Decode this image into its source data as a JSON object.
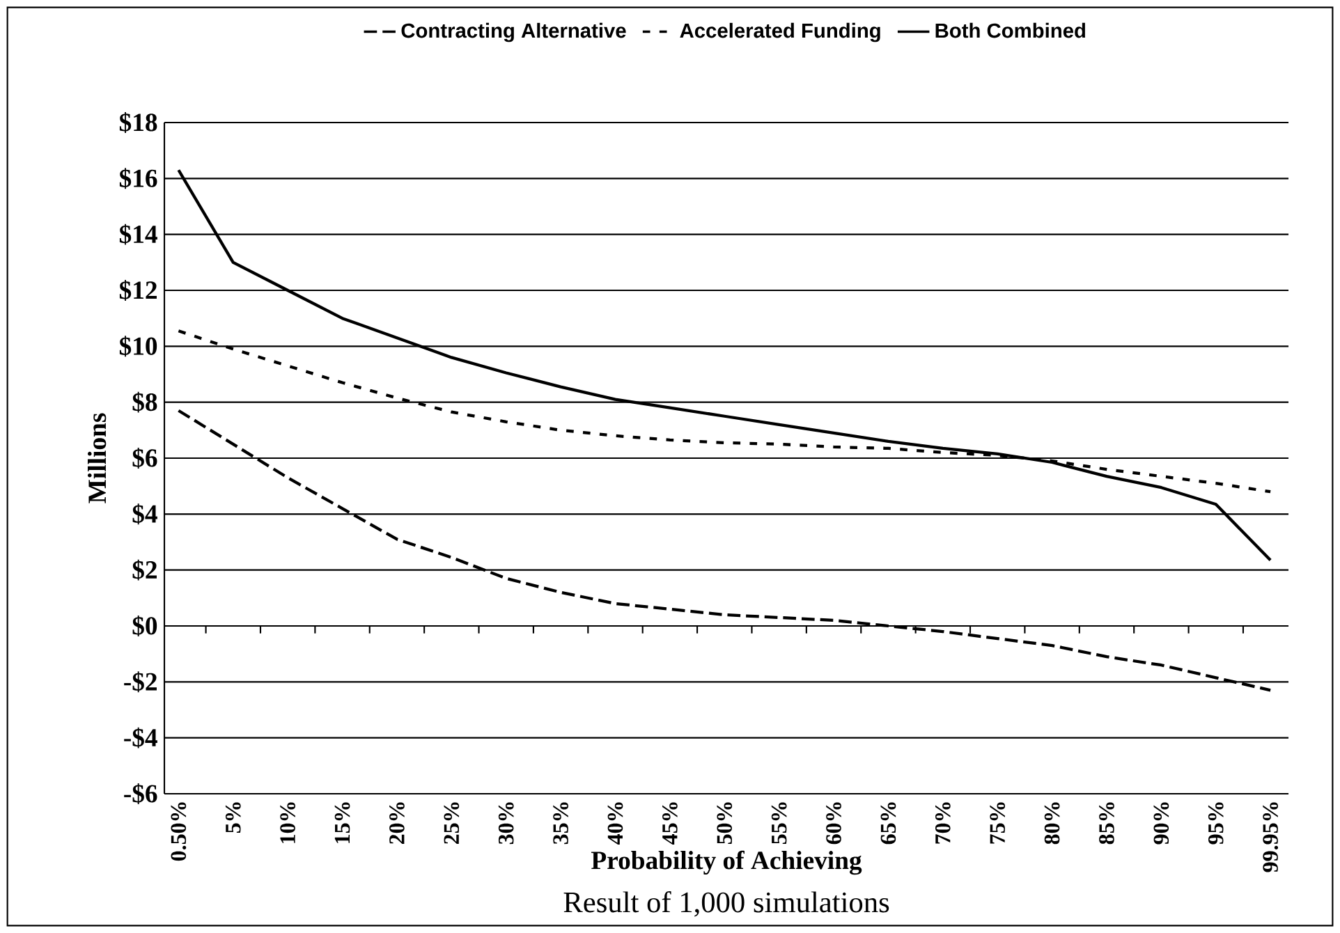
{
  "chart_data": {
    "type": "line",
    "xlabel": "Probability of Achieving",
    "ylabel": "Millions",
    "categories": [
      "0.50%",
      "5%",
      "10%",
      "15%",
      "20%",
      "25%",
      "30%",
      "35%",
      "40%",
      "45%",
      "50%",
      "55%",
      "60%",
      "65%",
      "70%",
      "75%",
      "80%",
      "85%",
      "90%",
      "95%",
      "99.95%"
    ],
    "series": [
      {
        "name": "Contracting Alternative",
        "color": "#000000",
        "line_style": "dashed",
        "values": [
          7.7,
          6.5,
          5.3,
          4.2,
          3.1,
          2.45,
          1.7,
          1.2,
          0.8,
          0.6,
          0.4,
          0.3,
          0.2,
          0.0,
          -0.2,
          -0.45,
          -0.7,
          -1.1,
          -1.4,
          -1.85,
          -2.3
        ]
      },
      {
        "name": "Accelerated Funding",
        "color": "#000000",
        "line_style": "dotted",
        "values": [
          10.55,
          9.9,
          9.3,
          8.7,
          8.15,
          7.65,
          7.3,
          7.0,
          6.8,
          6.65,
          6.55,
          6.5,
          6.4,
          6.35,
          6.2,
          6.1,
          5.9,
          5.6,
          5.35,
          5.1,
          4.8
        ]
      },
      {
        "name": "Both Combined",
        "color": "#000000",
        "line_style": "solid",
        "values": [
          16.3,
          13.0,
          12.0,
          11.0,
          10.3,
          9.6,
          9.05,
          8.55,
          8.1,
          7.8,
          7.5,
          7.2,
          6.9,
          6.6,
          6.35,
          6.15,
          5.85,
          5.35,
          4.95,
          4.35,
          2.35
        ]
      }
    ],
    "ylim": [
      -6,
      18
    ],
    "yticks": [
      {
        "value": -6,
        "label": "-$6"
      },
      {
        "value": -4,
        "label": "-$4"
      },
      {
        "value": -2,
        "label": "-$2"
      },
      {
        "value": 0,
        "label": "$0"
      },
      {
        "value": 2,
        "label": "$2"
      },
      {
        "value": 4,
        "label": "$4"
      },
      {
        "value": 6,
        "label": "$6"
      },
      {
        "value": 8,
        "label": "$8"
      },
      {
        "value": 10,
        "label": "$10"
      },
      {
        "value": 12,
        "label": "$12"
      },
      {
        "value": 14,
        "label": "$14"
      },
      {
        "value": 16,
        "label": "$16"
      },
      {
        "value": 18,
        "label": "$18"
      }
    ],
    "grid": "y",
    "legend": "top",
    "marker": "none",
    "annotations": [
      "Result of 1,000 simulations"
    ]
  }
}
